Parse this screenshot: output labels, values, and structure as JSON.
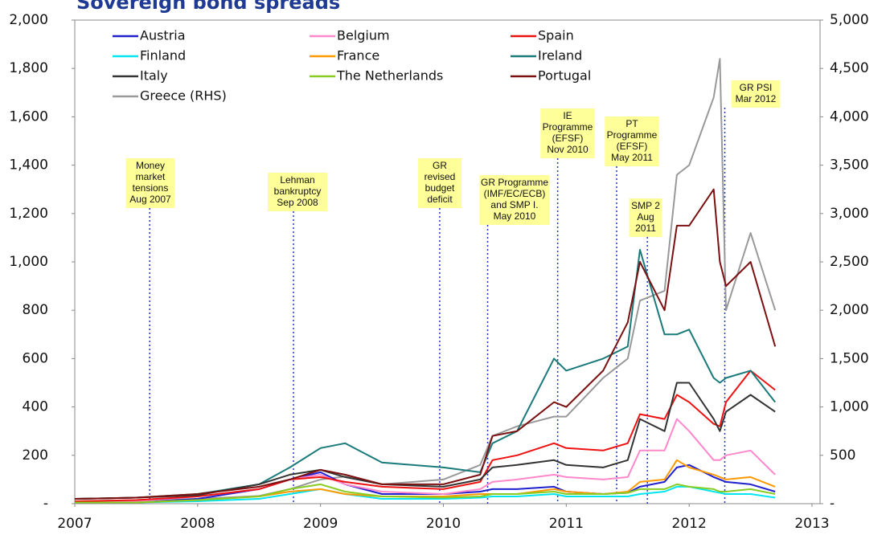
{
  "chart_data": {
    "type": "line",
    "title": "Sovereign bond spreads",
    "x": [
      2007.0,
      2007.5,
      2008.0,
      2008.5,
      2008.75,
      2009.0,
      2009.2,
      2009.5,
      2010.0,
      2010.3,
      2010.4,
      2010.6,
      2010.9,
      2011.0,
      2011.3,
      2011.5,
      2011.6,
      2011.8,
      2011.9,
      2012.0,
      2012.2,
      2012.25,
      2012.3,
      2012.5,
      2012.7
    ],
    "xlim": [
      2007,
      2013
    ],
    "xticks": [
      2007,
      2008,
      2009,
      2010,
      2011,
      2012,
      2013
    ],
    "ylim": [
      0,
      2000
    ],
    "yticks": [
      {
        "value": 0,
        "label": "-"
      },
      200,
      400,
      600,
      800,
      {
        "value": 1000,
        "label": "1,000"
      },
      {
        "value": 1200,
        "label": "1,200"
      },
      {
        "value": 1400,
        "label": "1,400"
      },
      {
        "value": 1600,
        "label": "1,600"
      },
      {
        "value": 1800,
        "label": "1,800"
      },
      {
        "value": 2000,
        "label": "2,000"
      }
    ],
    "y2lim": [
      0,
      5000
    ],
    "y2ticks": [
      {
        "value": 0,
        "label": "-"
      },
      500,
      {
        "value": 1000,
        "label": "1,000"
      },
      {
        "value": 1500,
        "label": "1,500"
      },
      {
        "value": 2000,
        "label": "2,000"
      },
      {
        "value": 2500,
        "label": "2,500"
      },
      {
        "value": 3000,
        "label": "3,000"
      },
      {
        "value": 3500,
        "label": "3,500"
      },
      {
        "value": 4000,
        "label": "4,000"
      },
      {
        "value": 4500,
        "label": "4,500"
      },
      {
        "value": 5000,
        "label": "5,000"
      }
    ],
    "series": [
      {
        "name": "Austria",
        "color": "#1f1fd0",
        "values": [
          5,
          5,
          20,
          60,
          100,
          130,
          80,
          40,
          40,
          50,
          60,
          60,
          70,
          50,
          40,
          45,
          70,
          90,
          150,
          160,
          110,
          100,
          90,
          80,
          50
        ]
      },
      {
        "name": "Belgium",
        "color": "#ff88cc",
        "values": [
          5,
          10,
          30,
          60,
          100,
          120,
          80,
          50,
          40,
          60,
          90,
          100,
          120,
          110,
          100,
          110,
          220,
          220,
          350,
          300,
          180,
          180,
          200,
          220,
          120
        ]
      },
      {
        "name": "Spain",
        "color": "#ee1111",
        "values": [
          10,
          15,
          30,
          60,
          100,
          110,
          90,
          70,
          60,
          90,
          180,
          200,
          250,
          230,
          220,
          250,
          370,
          350,
          450,
          420,
          330,
          320,
          420,
          550,
          470
        ]
      },
      {
        "name": "Finland",
        "color": "#00e5ee",
        "values": [
          5,
          5,
          10,
          20,
          40,
          60,
          40,
          20,
          20,
          25,
          30,
          30,
          40,
          30,
          30,
          30,
          40,
          50,
          70,
          70,
          50,
          45,
          40,
          40,
          25
        ]
      },
      {
        "name": "France",
        "color": "#ff9900",
        "values": [
          5,
          5,
          15,
          30,
          50,
          60,
          40,
          30,
          30,
          40,
          40,
          40,
          60,
          50,
          40,
          50,
          90,
          100,
          180,
          150,
          120,
          110,
          100,
          110,
          70
        ]
      },
      {
        "name": "Ireland",
        "color": "#1a7a7a",
        "values": [
          20,
          25,
          40,
          80,
          150,
          230,
          250,
          170,
          150,
          130,
          250,
          300,
          600,
          550,
          600,
          650,
          1050,
          700,
          700,
          720,
          520,
          500,
          520,
          550,
          420
        ]
      },
      {
        "name": "Italy",
        "color": "#333333",
        "values": [
          20,
          25,
          35,
          80,
          120,
          140,
          110,
          80,
          70,
          100,
          150,
          160,
          180,
          160,
          150,
          180,
          350,
          300,
          500,
          500,
          350,
          300,
          380,
          450,
          380
        ]
      },
      {
        "name": "The Netherlands",
        "color": "#88cc22",
        "values": [
          5,
          5,
          15,
          30,
          60,
          80,
          50,
          30,
          25,
          30,
          40,
          40,
          50,
          40,
          40,
          45,
          60,
          60,
          80,
          70,
          60,
          50,
          50,
          60,
          40
        ]
      },
      {
        "name": "Portugal",
        "color": "#7a1010",
        "values": [
          20,
          25,
          40,
          70,
          100,
          140,
          120,
          80,
          80,
          120,
          280,
          300,
          420,
          400,
          550,
          750,
          1000,
          800,
          1150,
          1150,
          1300,
          1000,
          900,
          1000,
          650
        ]
      },
      {
        "name": "Greece (RHS)",
        "color": "#999999",
        "axis": "y2",
        "values": [
          25,
          30,
          50,
          80,
          150,
          250,
          280,
          200,
          250,
          400,
          700,
          800,
          900,
          900,
          1300,
          1500,
          2100,
          2200,
          3400,
          3500,
          4200,
          4600,
          2000,
          2800,
          2000
        ]
      }
    ],
    "annotations": [
      {
        "x": 2007.61,
        "lines": [
          "Money",
          "market",
          "tensions",
          "Aug 2007"
        ]
      },
      {
        "x": 2008.78,
        "lines": [
          "Lehman",
          "bankruptcy",
          "Sep 2008"
        ]
      },
      {
        "x": 2009.97,
        "lines": [
          "GR",
          "revised",
          "budget",
          "deficit"
        ]
      },
      {
        "x": 2010.36,
        "lines": [
          "GR Programme",
          "(IMF/EC/ECB)",
          "and SMP I.",
          "May 2010"
        ]
      },
      {
        "x": 2010.93,
        "lines": [
          "IE",
          "Programme",
          "(EFSF)",
          "Nov 2010"
        ]
      },
      {
        "x": 2011.41,
        "lines": [
          "PT",
          "Programme",
          "(EFSF)",
          "May 2011"
        ]
      },
      {
        "x": 2011.66,
        "lines": [
          "SMP 2",
          "Aug",
          "2011"
        ]
      },
      {
        "x": 2012.29,
        "lines": [
          "GR PSI",
          "Mar 2012"
        ]
      }
    ]
  }
}
